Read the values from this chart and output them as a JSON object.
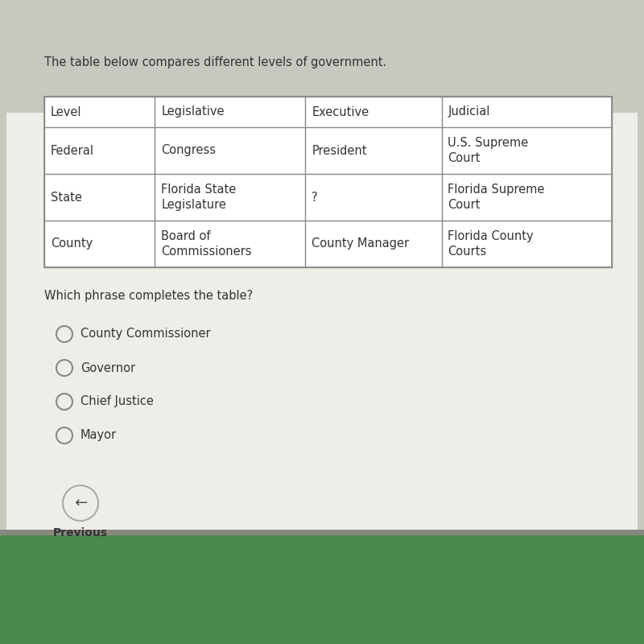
{
  "outer_bg": "#c8c8c0",
  "inner_bg": "#e8e8e2",
  "content_bg": "#eeede8",
  "title_text": "The table below compares different levels of government.",
  "question_text": "Which phrase completes the table?",
  "table_headers": [
    "Level",
    "Legislative",
    "Executive",
    "Judicial"
  ],
  "table_rows": [
    [
      "Federal",
      "Congress",
      "President",
      "U.S. Supreme\nCourt"
    ],
    [
      "State",
      "Florida State\nLegislature",
      "?",
      "Florida Supreme\nCourt"
    ],
    [
      "County",
      "Board of\nCommissioners",
      "County Manager",
      "Florida County\nCourts"
    ]
  ],
  "options": [
    "County Commissioner",
    "Governor",
    "Chief Justice",
    "Mayor"
  ],
  "prev_button_text": "Previous",
  "title_fontsize": 10.5,
  "table_fontsize": 10.5,
  "question_fontsize": 10.5,
  "option_fontsize": 10.5,
  "table_line_color": "#888888",
  "text_color": "#333333",
  "dock_color": "#4a8a4a"
}
